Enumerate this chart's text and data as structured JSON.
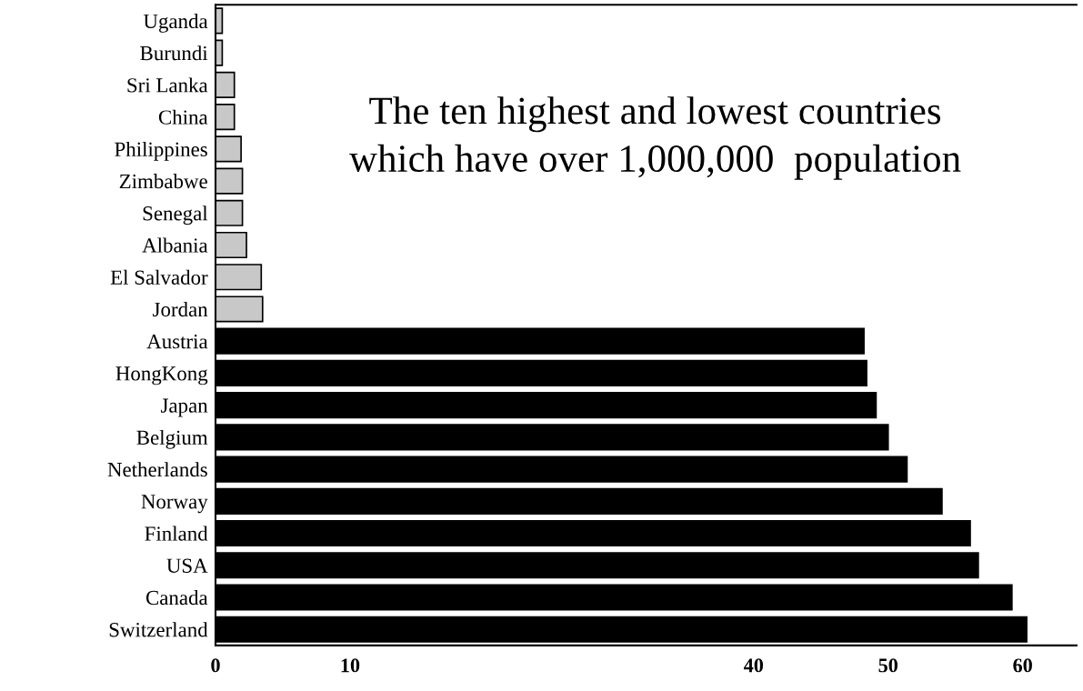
{
  "chart_data": {
    "type": "bar",
    "orientation": "horizontal",
    "title": "The ten highest and lowest countries\nwhich have over 1,000,000  population",
    "categories": [
      "Uganda",
      "Burundi",
      "Sri Lanka",
      "China",
      "Philippines",
      "Zimbabwe",
      "Senegal",
      "Albania",
      "El Salvador",
      "Jordan",
      "Austria",
      "HongKong",
      "Japan",
      "Belgium",
      "Netherlands",
      "Norway",
      "Finland",
      "USA",
      "Canada",
      "Switzerland"
    ],
    "values": [
      0.5,
      0.5,
      1.4,
      1.4,
      1.9,
      2.0,
      2.0,
      2.3,
      3.4,
      3.5,
      48.2,
      48.4,
      49.1,
      50.0,
      51.4,
      54.0,
      56.1,
      56.7,
      59.2,
      60.3
    ],
    "colors": [
      "#c8c8c8",
      "#c8c8c8",
      "#c8c8c8",
      "#c8c8c8",
      "#c8c8c8",
      "#c8c8c8",
      "#c8c8c8",
      "#c8c8c8",
      "#c8c8c8",
      "#c8c8c8",
      "#000000",
      "#000000",
      "#000000",
      "#000000",
      "#000000",
      "#000000",
      "#000000",
      "#000000",
      "#000000",
      "#000000"
    ],
    "xlim": [
      0,
      64
    ],
    "xticks": [
      0,
      10,
      40,
      50,
      60
    ],
    "legend": false,
    "grid": false
  }
}
